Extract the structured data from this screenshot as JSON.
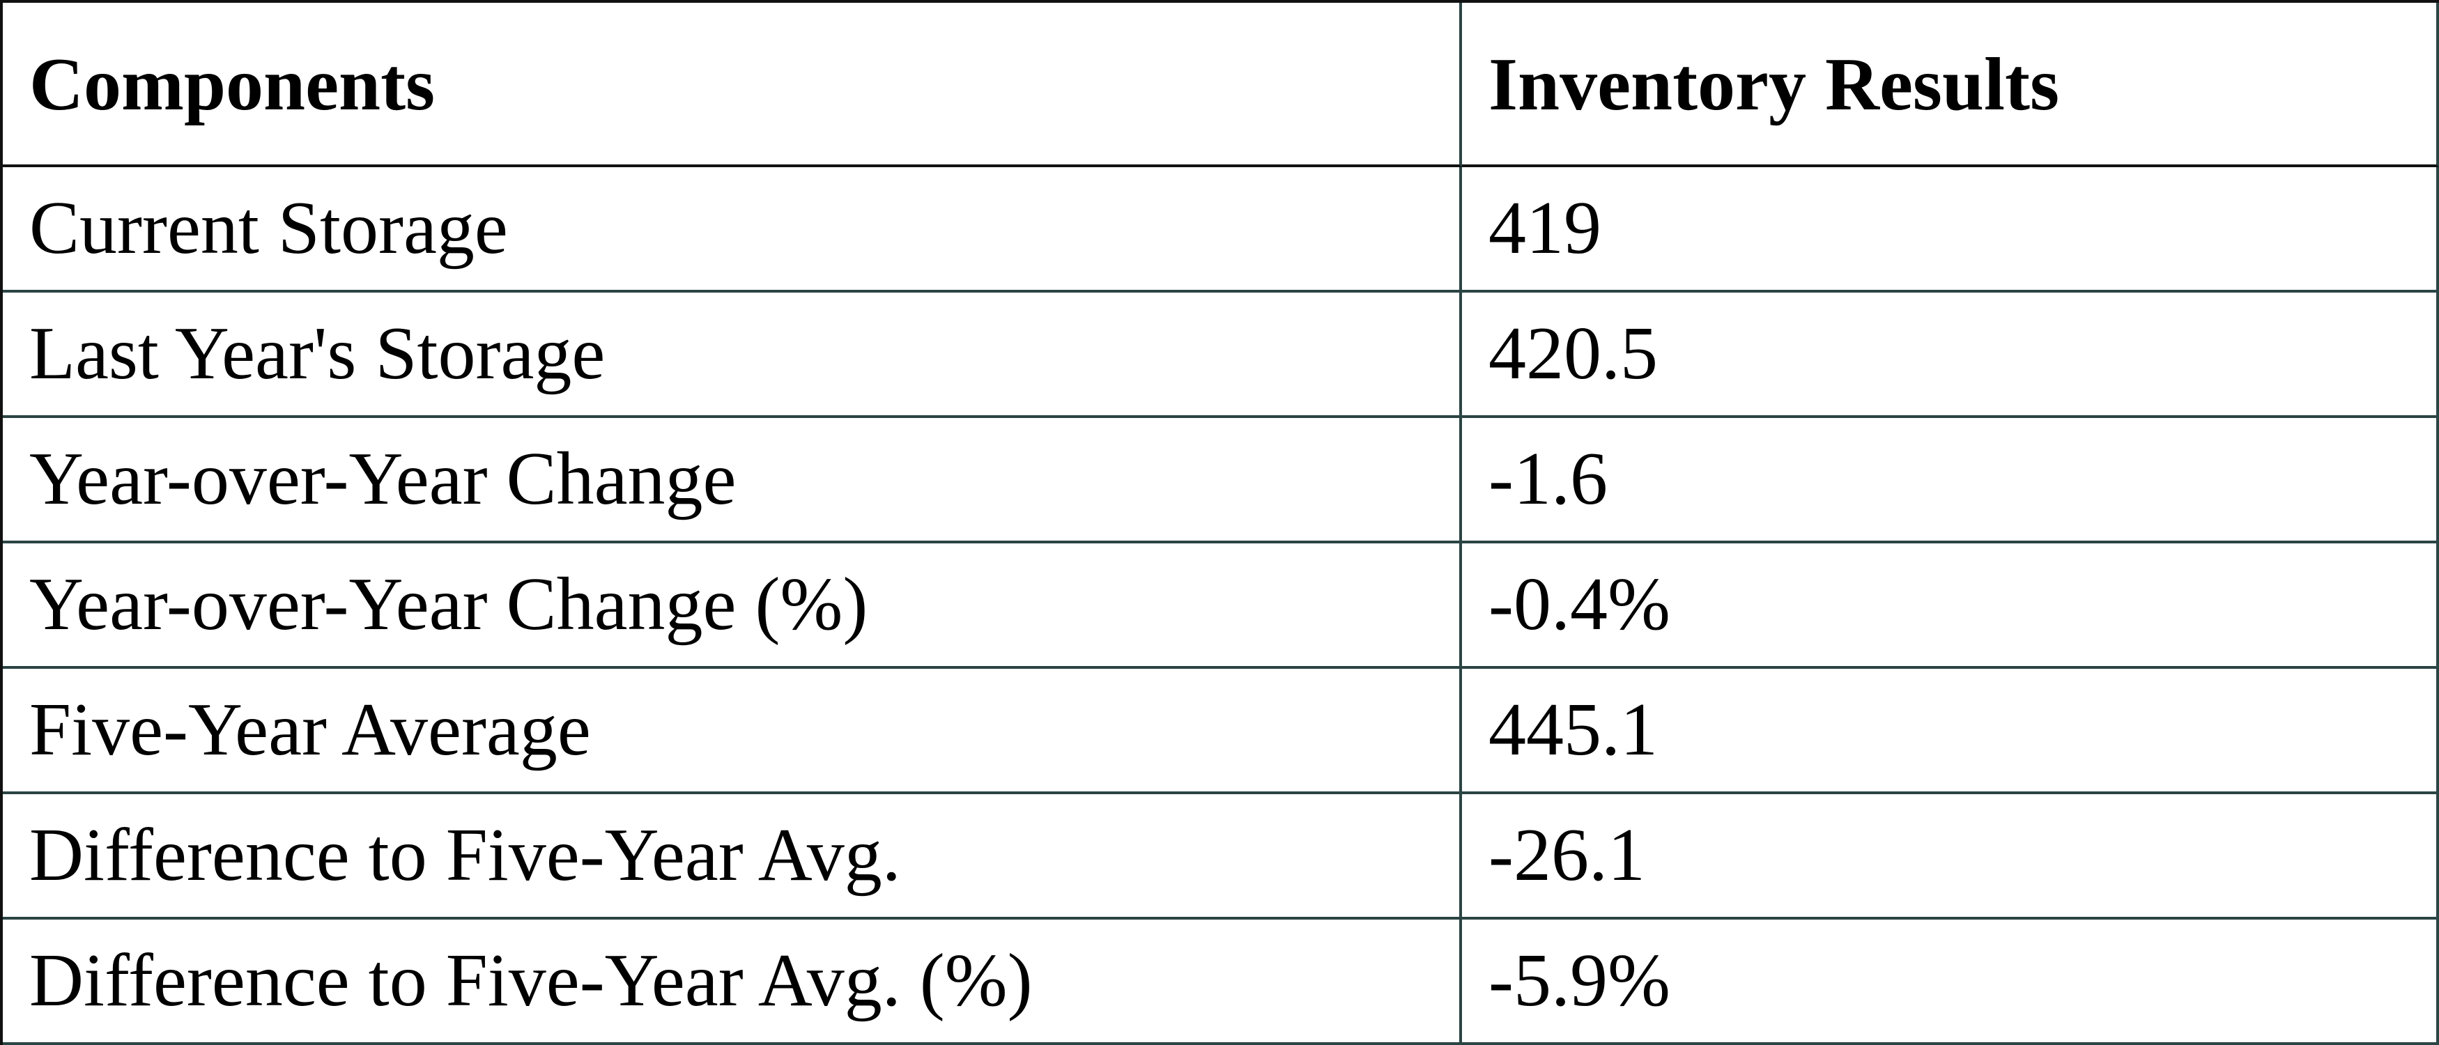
{
  "table": {
    "header": [
      "Components",
      "Inventory Results"
    ],
    "rows": [
      [
        "Current Storage",
        "419"
      ],
      [
        "Last Year's Storage",
        "420.5"
      ],
      [
        "Year-over-Year Change",
        "-1.6"
      ],
      [
        "Year-over-Year Change (%)",
        "-0.4%"
      ],
      [
        "Five-Year Average",
        "445.1"
      ],
      [
        "Difference to Five-Year Avg.",
        "-26.1"
      ],
      [
        "Difference to Five-Year Avg. (%)",
        "-5.9%"
      ]
    ]
  }
}
